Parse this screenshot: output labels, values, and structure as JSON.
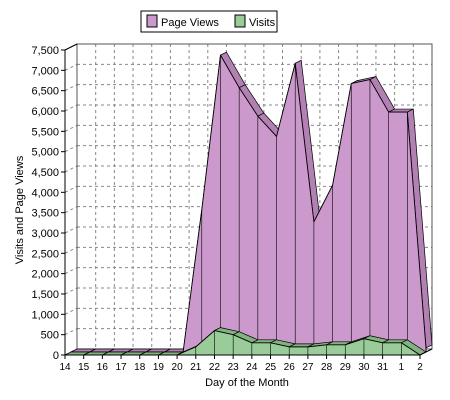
{
  "chart_data": {
    "type": "area",
    "title": "",
    "xlabel": "Day of the Month",
    "ylabel": "Visits and Page Views",
    "ylim": [
      0,
      7500
    ],
    "y_ticks": [
      0,
      500,
      1000,
      1500,
      2000,
      2500,
      3000,
      3500,
      4000,
      4500,
      5000,
      5500,
      6000,
      6500,
      7000,
      7500
    ],
    "y_tick_labels": [
      "0",
      "500",
      "1,000",
      "1,500",
      "2,000",
      "2,500",
      "3,000",
      "3,500",
      "4,000",
      "4,500",
      "5,000",
      "5,500",
      "6,000",
      "6,500",
      "7,000",
      "7,500"
    ],
    "categories": [
      "14",
      "15",
      "16",
      "17",
      "18",
      "19",
      "20",
      "21",
      "22",
      "23",
      "24",
      "25",
      "26",
      "27",
      "28",
      "29",
      "30",
      "31",
      "1",
      "2"
    ],
    "grid": true,
    "style": "3d",
    "legend_position": "top-center",
    "series": [
      {
        "name": "Page Views",
        "color": "#cc99cc",
        "values": [
          0,
          0,
          0,
          0,
          0,
          0,
          0,
          3500,
          7300,
          6500,
          5800,
          5300,
          7100,
          3200,
          4100,
          6600,
          6700,
          5900,
          5900,
          100
        ]
      },
      {
        "name": "Visits",
        "color": "#99cc99",
        "values": [
          0,
          0,
          0,
          0,
          0,
          0,
          0,
          200,
          600,
          500,
          300,
          300,
          200,
          200,
          250,
          250,
          400,
          300,
          300,
          0
        ]
      }
    ]
  }
}
